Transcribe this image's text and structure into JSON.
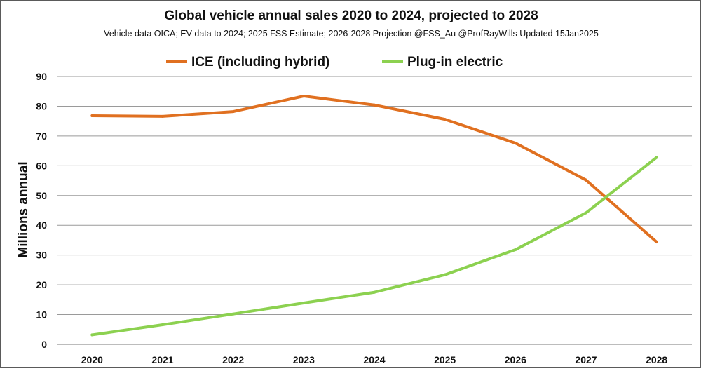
{
  "chart_data": {
    "type": "line",
    "title": "Global vehicle annual sales 2020 to 2024, projected to 2028",
    "subtitle": "Vehicle data OICA; EV data to 2024;  2025 FSS Estimate;  2026-2028 Projection @FSS_Au @ProfRayWills  Updated 15Jan2025",
    "ylabel": "Millions annual",
    "xlabel": "",
    "ylim": [
      0,
      90
    ],
    "y_ticks": [
      0,
      10,
      20,
      30,
      40,
      50,
      60,
      70,
      80,
      90
    ],
    "categories": [
      "2020",
      "2021",
      "2022",
      "2023",
      "2024",
      "2025",
      "2026",
      "2027",
      "2028"
    ],
    "series": [
      {
        "name": "ICE (including hybrid)",
        "color": "#E07020",
        "values": [
          76.8,
          76.6,
          78.2,
          83.4,
          80.4,
          75.6,
          67.6,
          55.2,
          34.4
        ]
      },
      {
        "name": "Plug-in electric",
        "color": "#8CD150",
        "values": [
          3.2,
          6.6,
          10.2,
          13.9,
          17.5,
          23.4,
          31.8,
          44.2,
          62.8
        ]
      }
    ],
    "grid": true,
    "legend": "top"
  }
}
